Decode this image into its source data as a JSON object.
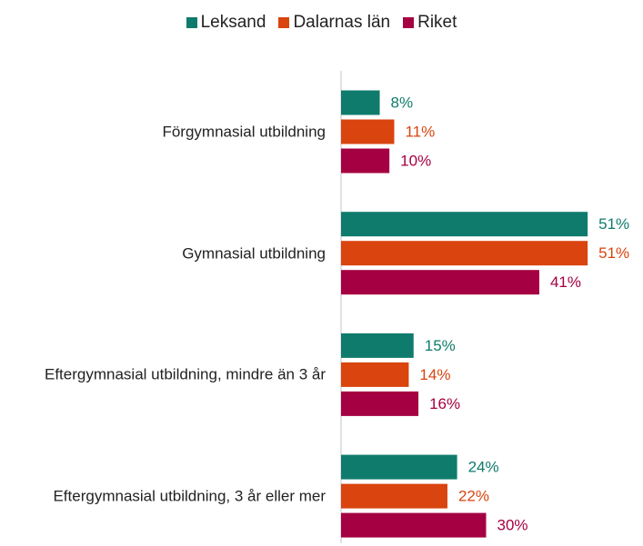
{
  "chart_data": {
    "type": "bar",
    "orientation": "horizontal",
    "categories": [
      "Förgymnasial utbildning",
      "Gymnasial utbildning",
      "Eftergymnasial utbildning, mindre än 3 år",
      "Eftergymnasial utbildning, 3 år eller mer"
    ],
    "series": [
      {
        "name": "Leksand",
        "color": "#0f7b6c",
        "values": [
          8,
          51,
          15,
          24
        ],
        "value_labels": [
          "8%",
          "51%",
          "15%",
          "24%"
        ]
      },
      {
        "name": "Dalarnas län",
        "color": "#d9440f",
        "values": [
          11,
          51,
          14,
          22
        ],
        "value_labels": [
          "11%",
          "51%",
          "14%",
          "22%"
        ]
      },
      {
        "name": "Riket",
        "color": "#a50041",
        "values": [
          10,
          41,
          16,
          30
        ],
        "value_labels": [
          "10%",
          "41%",
          "16%",
          "30%"
        ]
      }
    ],
    "xlim": [
      0,
      60
    ],
    "legend": "top"
  }
}
